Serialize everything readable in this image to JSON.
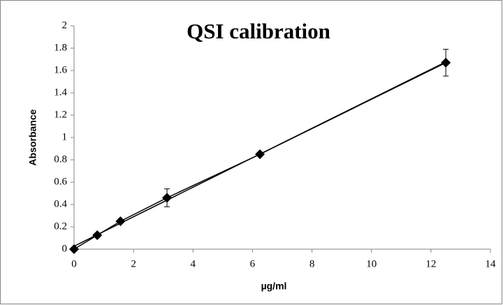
{
  "chart_data": {
    "type": "scatter",
    "title": "QSI calibration",
    "xlabel": "µg/ml",
    "ylabel": "Absorbance",
    "x": [
      0,
      0.78,
      1.56,
      3.125,
      6.25,
      12.5
    ],
    "values": [
      0,
      0.125,
      0.25,
      0.46,
      0.85,
      1.67
    ],
    "errors": [
      0.01,
      0.01,
      0.015,
      0.08,
      0.015,
      0.12
    ],
    "color": "#000000",
    "trendline": true,
    "xlim": [
      0,
      14
    ],
    "xticks": [
      0,
      2,
      4,
      6,
      8,
      10,
      12,
      14
    ],
    "ylim": [
      0,
      2
    ],
    "yticks": [
      0,
      0.2,
      0.4,
      0.6,
      0.8,
      1,
      1.2,
      1.4,
      1.6,
      1.8,
      2
    ],
    "grid": false
  }
}
